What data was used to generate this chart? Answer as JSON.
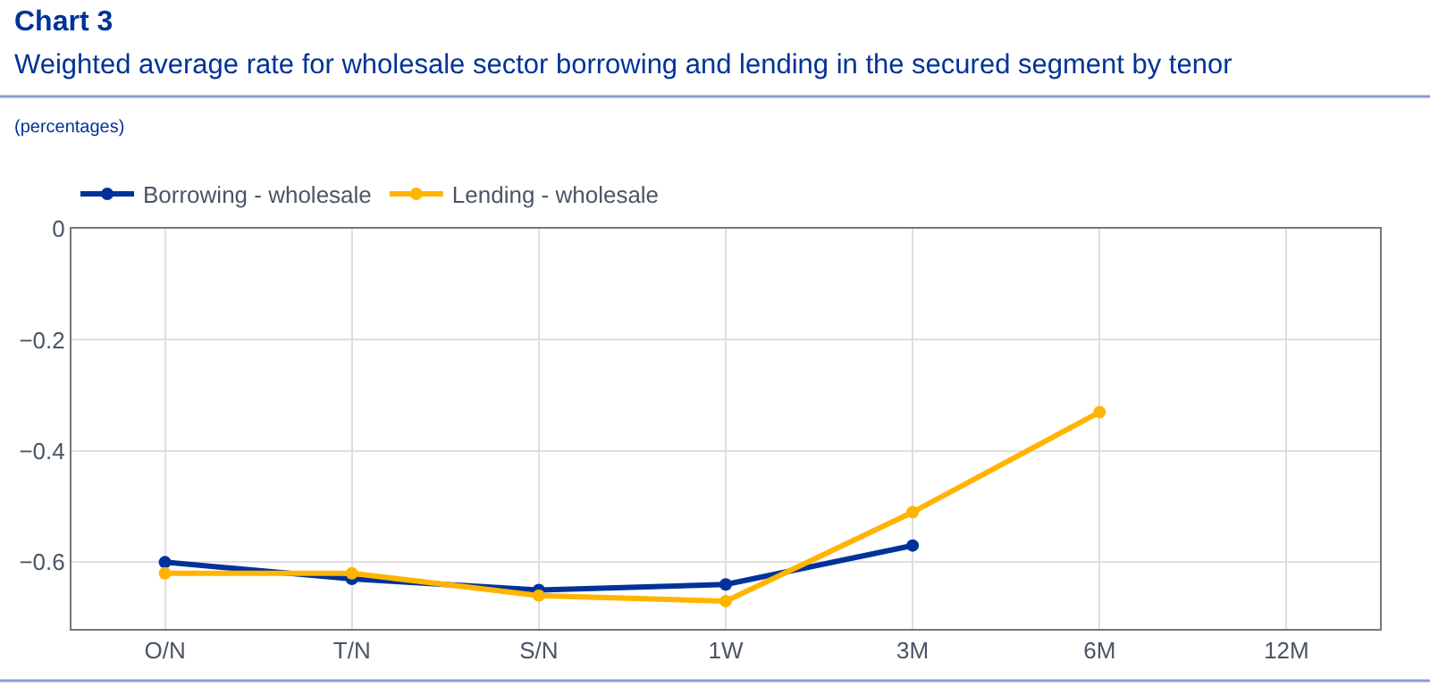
{
  "chart_data": {
    "type": "line",
    "title": "Chart 3",
    "subtitle": "Weighted average rate for wholesale sector borrowing and lending in the secured segment by tenor",
    "annotations": [
      "(percentages)"
    ],
    "categories": [
      "O/N",
      "T/N",
      "S/N",
      "1W",
      "3M",
      "6M",
      "12M"
    ],
    "series": [
      {
        "name": "Borrowing - wholesale",
        "color": "#003299",
        "values": [
          -0.6,
          -0.63,
          -0.65,
          -0.64,
          -0.57,
          null,
          null
        ]
      },
      {
        "name": "Lending - wholesale",
        "color": "#ffb400",
        "values": [
          -0.62,
          -0.62,
          -0.66,
          -0.67,
          -0.51,
          -0.33,
          null
        ]
      }
    ],
    "ylim": [
      -0.72,
      0
    ],
    "yticks": [
      0,
      -0.2,
      -0.4,
      -0.6
    ],
    "grid": true,
    "legend": "top left",
    "marker": "circle",
    "line_style": "solid"
  }
}
